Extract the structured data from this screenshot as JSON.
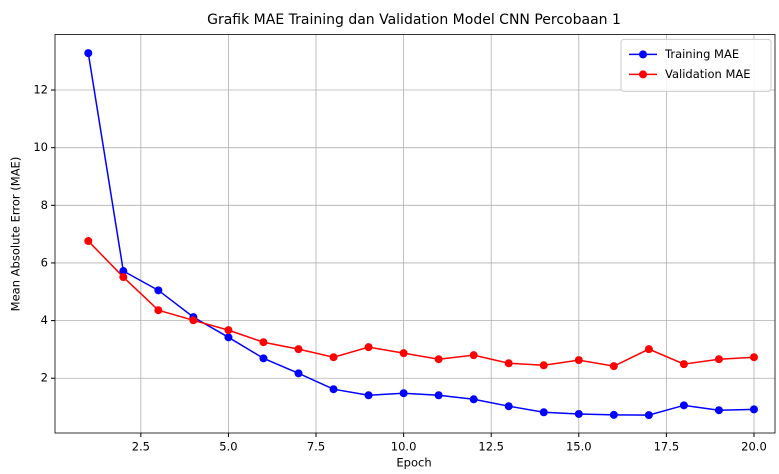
{
  "chart_data": {
    "type": "line",
    "title": "Grafik MAE Training dan Validation Model CNN Percobaan 1",
    "x_label": "Epoch",
    "y_label": "Mean Absolute Error (MAE)",
    "x": [
      1,
      2,
      3,
      4,
      5,
      6,
      7,
      8,
      9,
      10,
      11,
      12,
      13,
      14,
      15,
      16,
      17,
      18,
      19,
      20
    ],
    "series": [
      {
        "name": "Training MAE",
        "color": "#0000ff",
        "values": [
          13.28,
          5.72,
          5.05,
          4.12,
          3.42,
          2.69,
          2.17,
          1.62,
          1.41,
          1.48,
          1.41,
          1.27,
          1.03,
          0.82,
          0.76,
          0.73,
          0.72,
          1.06,
          0.89,
          0.92
        ]
      },
      {
        "name": "Validation MAE",
        "color": "#ff0000",
        "values": [
          6.76,
          5.51,
          4.36,
          4.01,
          3.67,
          3.25,
          3.01,
          2.73,
          3.08,
          2.87,
          2.66,
          2.8,
          2.52,
          2.45,
          2.63,
          2.42,
          3.01,
          2.49,
          2.66,
          2.73
        ]
      }
    ],
    "xlim": [
      0.05,
      20.6
    ],
    "xticks": [
      2.5,
      {
        "value": 5,
        "label": "5.0"
      },
      7.5,
      {
        "value": 10,
        "label": "10.0"
      },
      12.5,
      {
        "value": 15,
        "label": "15.0"
      },
      17.5,
      {
        "value": 20,
        "label": "20.0"
      }
    ],
    "ylim": [
      0.1,
      13.93
    ],
    "yticks": [
      2,
      4,
      6,
      8,
      10,
      12
    ],
    "grid": true,
    "legend": "upper right"
  }
}
